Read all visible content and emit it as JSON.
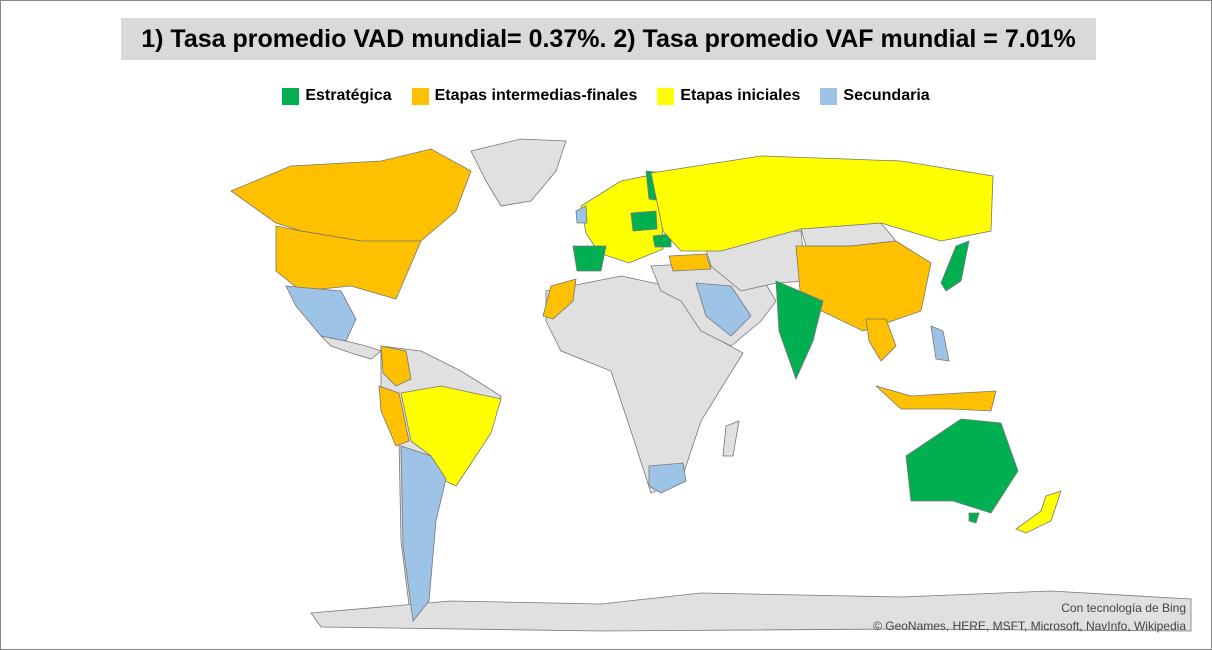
{
  "title": "1) Tasa promedio VAD mundial= 0.37%. 2) Tasa promedio VAF mundial = 7.01%",
  "legend": [
    {
      "name": "Estratégica",
      "color": "#00b050"
    },
    {
      "name": "Etapas intermedias-finales",
      "color": "#ffc000"
    },
    {
      "name": "Etapas iniciales",
      "color": "#ffff00"
    },
    {
      "name": "Secundaria",
      "color": "#9dc3e6"
    }
  ],
  "attribution": [
    "Con tecnología de Bing",
    "© GeoNames, HERE, MSFT, Microsoft, NavInfo, Wikipedia"
  ]
}
